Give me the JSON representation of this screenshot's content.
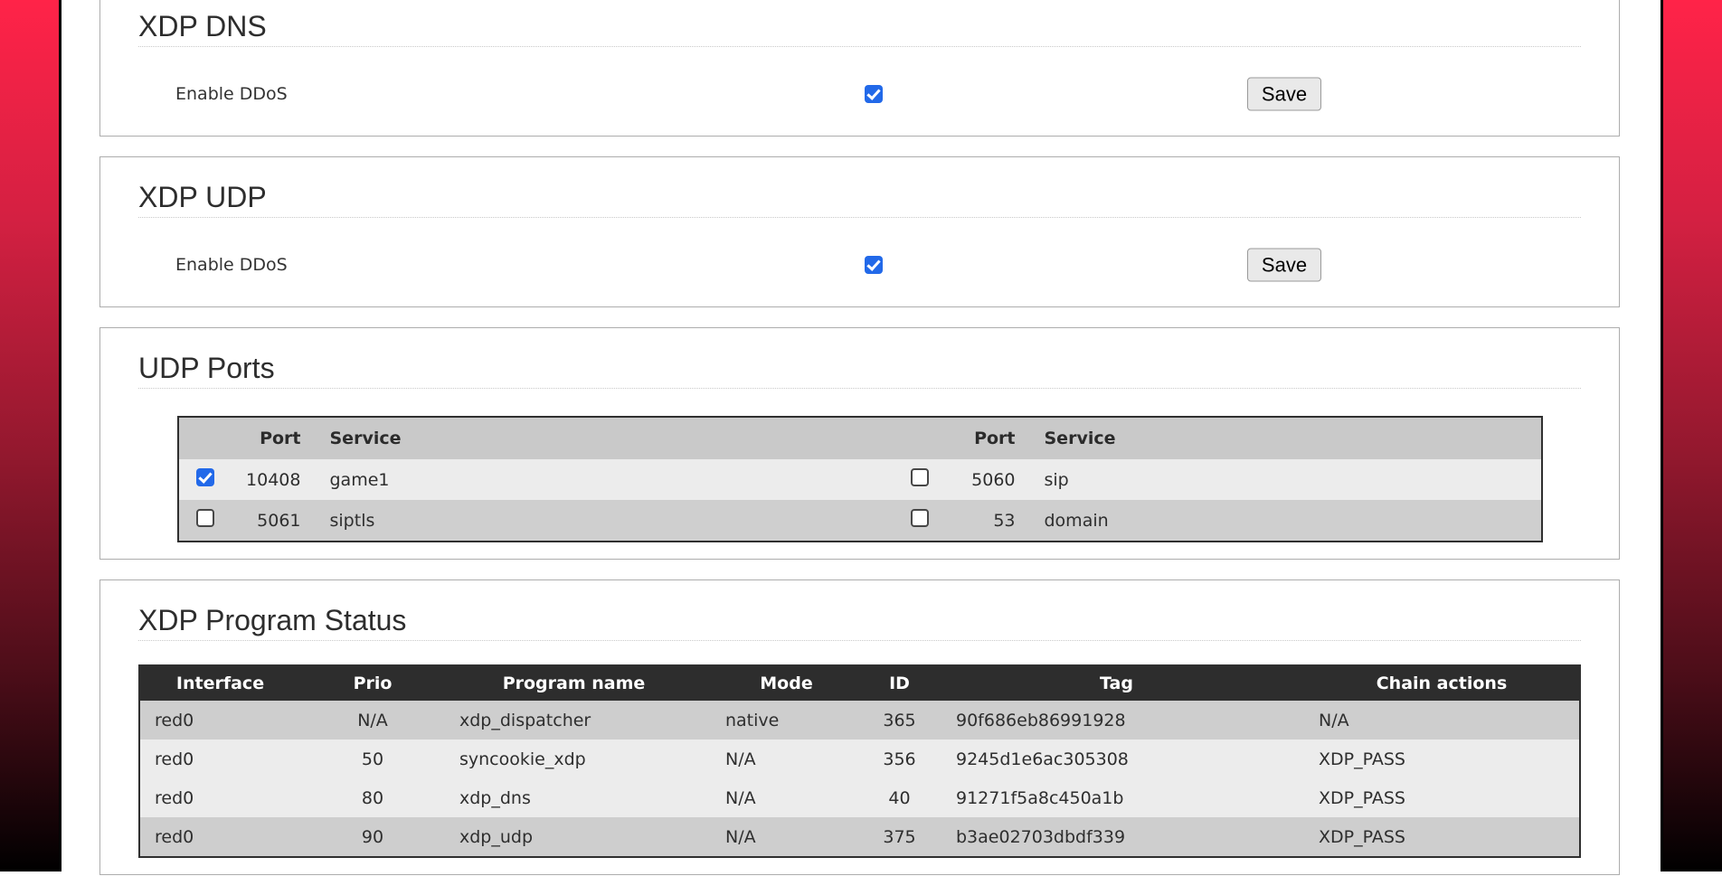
{
  "theme": {
    "gradient_top_color": "#ff2348",
    "gradient_bottom_color": "#000000",
    "accent_checkbox_color": "#2269e9",
    "table_header_dark_bg": "#2d2d2d",
    "table_header_gray_bg": "#c9c9c9",
    "row_light_bg": "#ececec",
    "row_dark_bg": "#cfcfcf"
  },
  "cards": [
    {
      "title": "XDP DNS",
      "label": "Enable DDoS",
      "checkbox_checked": true,
      "save_label": "Save"
    },
    {
      "title": "XDP UDP",
      "label": "Enable DDoS",
      "checkbox_checked": true,
      "save_label": "Save"
    },
    {
      "title": "UDP Ports"
    },
    {
      "title": "XDP Program Status"
    }
  ],
  "udp_ports": {
    "headers": [
      "",
      "Port",
      "Service",
      "",
      "Port",
      "Service"
    ],
    "rows": [
      {
        "shade": "light",
        "left": {
          "checked": true,
          "port": "10408",
          "service": "game1"
        },
        "right": {
          "checked": false,
          "port": "5060",
          "service": "sip"
        }
      },
      {
        "shade": "dark",
        "left": {
          "checked": false,
          "port": "5061",
          "service": "siptls"
        },
        "right": {
          "checked": false,
          "port": "53",
          "service": "domain"
        }
      }
    ]
  },
  "xdp_status": {
    "headers": [
      "Interface",
      "Prio",
      "Program name",
      "Mode",
      "ID",
      "Tag",
      "Chain actions"
    ],
    "rows": [
      {
        "shade": "dark",
        "cells": [
          "red0",
          "N/A",
          "xdp_dispatcher",
          "native",
          "365",
          "90f686eb86991928",
          "N/A"
        ]
      },
      {
        "shade": "light",
        "cells": [
          "red0",
          "50",
          "syncookie_xdp",
          "N/A",
          "356",
          "9245d1e6ac305308",
          "XDP_PASS"
        ]
      },
      {
        "shade": "light",
        "cells": [
          "red0",
          "80",
          "xdp_dns",
          "N/A",
          "40",
          "91271f5a8c450a1b",
          "XDP_PASS"
        ]
      },
      {
        "shade": "dark",
        "cells": [
          "red0",
          "90",
          "xdp_udp",
          "N/A",
          "375",
          "b3ae02703dbdf339",
          "XDP_PASS"
        ]
      }
    ]
  }
}
